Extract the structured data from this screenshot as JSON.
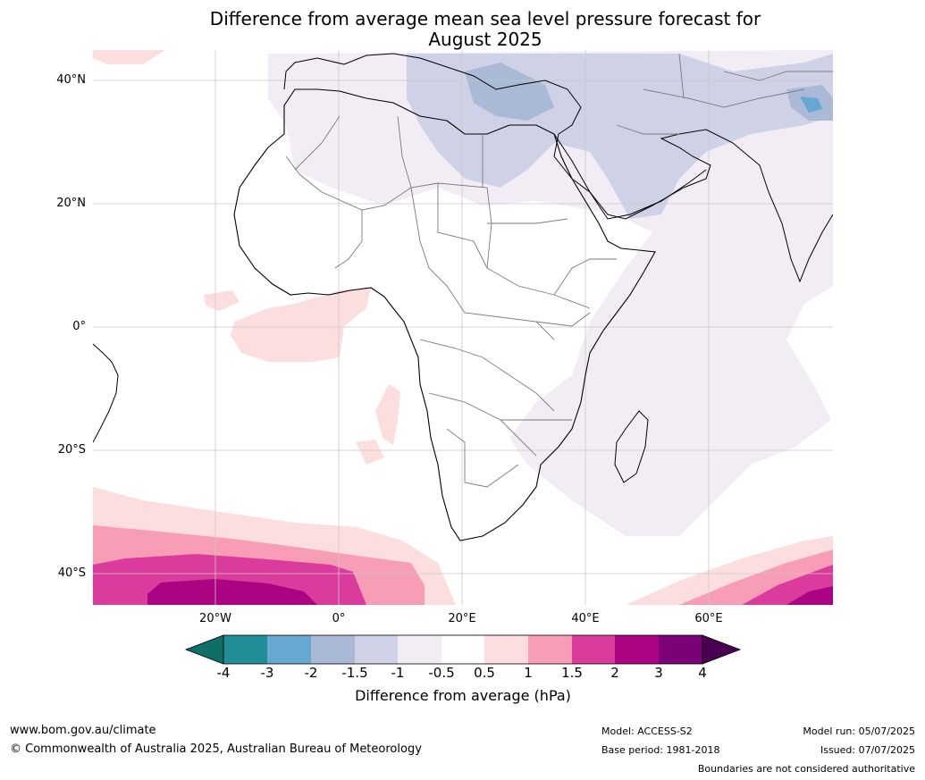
{
  "title_line1": "Difference from average mean sea level pressure forecast for",
  "title_line2": "August 2025",
  "lat_labels": [
    "40°N",
    "20°N",
    "0°",
    "20°S",
    "40°S"
  ],
  "lon_labels": [
    "20°W",
    "0°",
    "20°E",
    "40°E",
    "60°E"
  ],
  "colorbar": {
    "ticks": [
      "-4",
      "-3",
      "-2",
      "-1.5",
      "-1",
      "-0.5",
      "0.5",
      "1",
      "1.5",
      "2",
      "3",
      "4"
    ],
    "colors": [
      "#0d6f66",
      "#1f8e97",
      "#67a8d0",
      "#a9b9d6",
      "#cfd2e6",
      "#f2ecf5",
      "#ffffff",
      "#fddede",
      "#f79db5",
      "#db3b9c",
      "#ac0382",
      "#7a0177",
      "#4a0050"
    ],
    "label": "Difference from average (hPa)"
  },
  "footer": {
    "website": "www.bom.gov.au/climate",
    "copyright": "© Commonwealth of Australia 2025, Australian Bureau of Meteorology",
    "model": "Model: ACCESS-S2",
    "base_period": "Base period: 1981-2018",
    "model_run": "Model run: 05/07/2025",
    "issued": "Issued: 07/07/2025",
    "disclaimer": "Boundaries are not considered authoritative"
  }
}
